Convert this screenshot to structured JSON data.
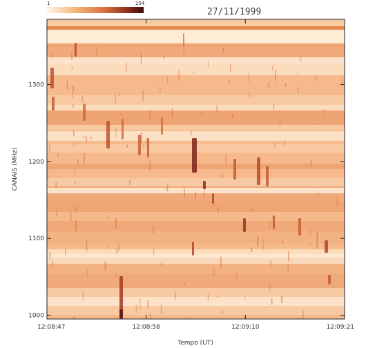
{
  "chart_data": {
    "type": "heatmap",
    "title": "27/11/1999",
    "xlabel": "Tempo (UT)",
    "ylabel": "CANAIS (MHz)",
    "x_ticks": [
      "12:08:47",
      "12:08:58",
      "12:09:10",
      "12:09:21"
    ],
    "y_ticks": [
      1000,
      1100,
      1200,
      1300
    ],
    "ylim": [
      995,
      1385
    ],
    "colorbar": {
      "min": 1,
      "max": 254
    },
    "colormap": [
      "#fffaf0",
      "#f8c58e",
      "#e98a4e",
      "#b4402a",
      "#5a1414"
    ],
    "grid": false
  }
}
